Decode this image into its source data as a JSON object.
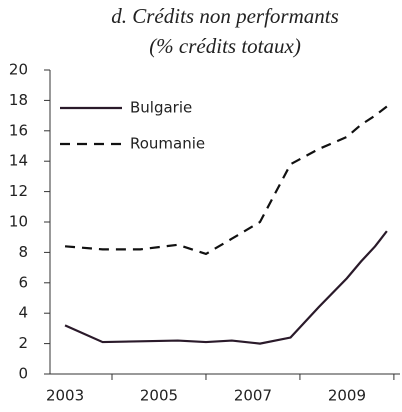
{
  "chart_data": {
    "type": "line",
    "title": [
      "d. Crédits non performants",
      "(% crédits totaux)"
    ],
    "x": [
      2003.0,
      2003.8,
      2004.6,
      2005.4,
      2006.0,
      2006.55,
      2007.15,
      2007.8,
      2008.4,
      2009.0,
      2009.3,
      2009.6,
      2009.85
    ],
    "series": [
      {
        "name": "Bulgarie",
        "color": "#2a1a2a",
        "dash": false,
        "values": [
          3.2,
          2.1,
          2.15,
          2.2,
          2.1,
          2.2,
          2.0,
          2.4,
          4.4,
          6.3,
          7.4,
          8.4,
          9.4
        ]
      },
      {
        "name": "Roumanie",
        "color": "#111111",
        "dash": true,
        "values": [
          8.4,
          8.2,
          8.2,
          8.5,
          7.9,
          8.9,
          10.0,
          13.8,
          14.8,
          15.6,
          16.4,
          17.0,
          17.6
        ]
      }
    ],
    "xlim": [
      2002.68,
      2010.13
    ],
    "xticks": [
      2003,
      2005,
      2007,
      2009
    ],
    "xminorticks": [
      2004,
      2006,
      2008,
      2010
    ],
    "ylim": [
      0,
      20
    ],
    "yticks": [
      0,
      2,
      4,
      6,
      8,
      10,
      12,
      14,
      16,
      18,
      20
    ],
    "legend": "upper-left"
  }
}
